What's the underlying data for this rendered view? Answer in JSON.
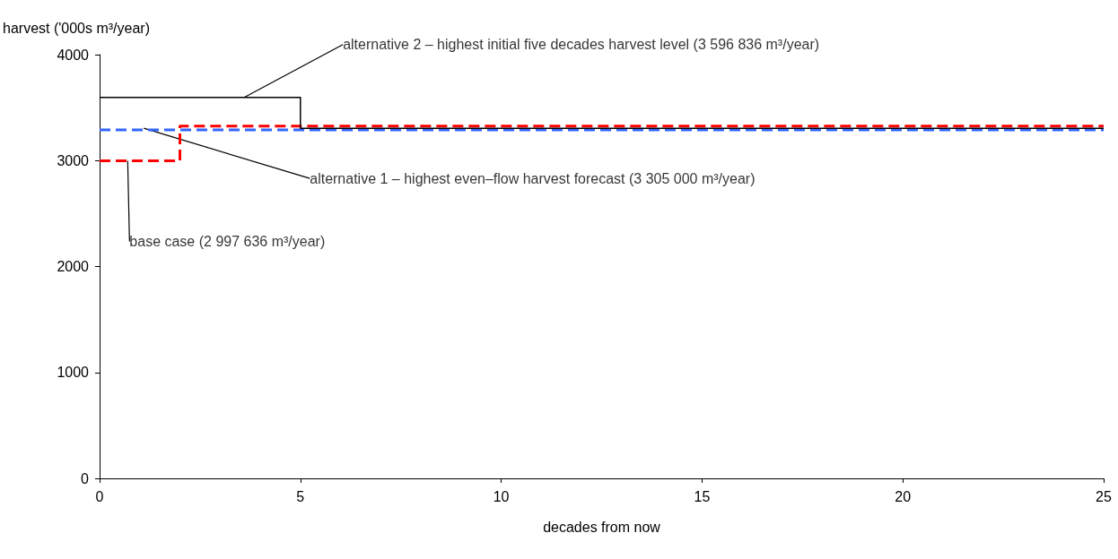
{
  "chart_data": {
    "type": "line",
    "xlabel": "decades from now",
    "ylabel": "harvest ('000s m³/year)",
    "xlim": [
      0,
      25
    ],
    "xticks": [
      0,
      5,
      10,
      15,
      20,
      25
    ],
    "ylim": [
      0,
      4000
    ],
    "yticks": [
      0,
      1000,
      2000,
      3000,
      4000
    ],
    "grid": false,
    "marker": "none",
    "series": [
      {
        "type": "line",
        "color": "#3366ff",
        "line_style": "dashed",
        "x": [
          0,
          25
        ],
        "values": [
          3290,
          3290
        ]
      },
      {
        "type": "step",
        "color": "#ff0000",
        "line_style": "dashed",
        "x": [
          0,
          2,
          25
        ],
        "values": [
          2998,
          3325,
          3325
        ]
      },
      {
        "type": "step",
        "color": "#000000",
        "line_style": "solid",
        "x": [
          0,
          5,
          25
        ],
        "values": [
          3597,
          3305,
          3305
        ]
      }
    ],
    "annotations": [
      {
        "text": "alternative 2 – highest initial five decades harvest level (3 596 836 m³/year)",
        "x": 3.6,
        "y": 3597
      },
      {
        "text": "alternative 1 – highest even–flow harvest forecast (3 305 000 m³/year)",
        "x": 1.1,
        "y": 3305
      },
      {
        "text": "base case (2 997 636 m³/year)",
        "x": 0.7,
        "y": 2998
      }
    ]
  }
}
